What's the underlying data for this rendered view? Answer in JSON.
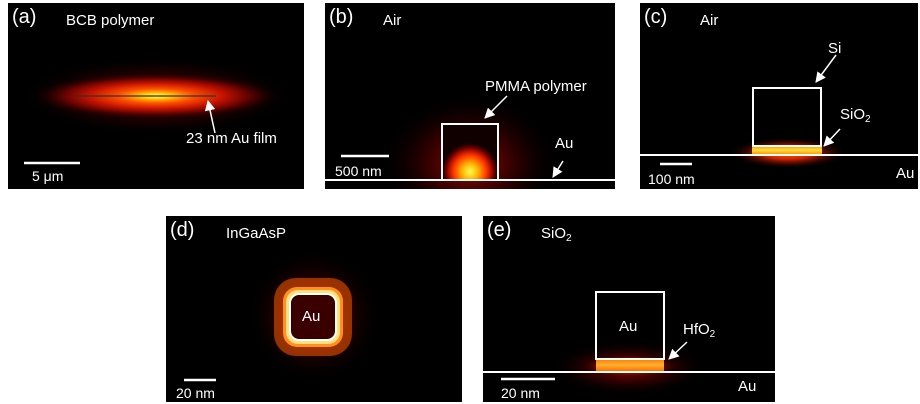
{
  "panels": {
    "a": {
      "label": "(a)",
      "medium": "BCB polymer",
      "annotation": "23 nm Au film",
      "scale": "5 μm"
    },
    "b": {
      "label": "(b)",
      "medium": "Air",
      "annotation": "PMMA polymer",
      "substrate": "Au",
      "scale": "500 nm"
    },
    "c": {
      "label": "(c)",
      "medium": "Air",
      "annotation_top": "Si",
      "annotation_gap_main": "SiO",
      "annotation_gap_sub": "2",
      "substrate": "Au",
      "scale": "100 nm"
    },
    "d": {
      "label": "(d)",
      "medium": "InGaAsP",
      "core": "Au",
      "scale": "20 nm"
    },
    "e": {
      "label": "(e)",
      "medium_main": "SiO",
      "medium_sub": "2",
      "core": "Au",
      "annotation_gap_main": "HfO",
      "annotation_gap_sub": "2",
      "substrate": "Au",
      "scale": "20 nm"
    }
  },
  "colors": {
    "background": "#000000",
    "field_peak": "#ffff66",
    "field_mid": "#ff3a00",
    "field_low": "#3a0000",
    "outline": "#ffffff"
  }
}
